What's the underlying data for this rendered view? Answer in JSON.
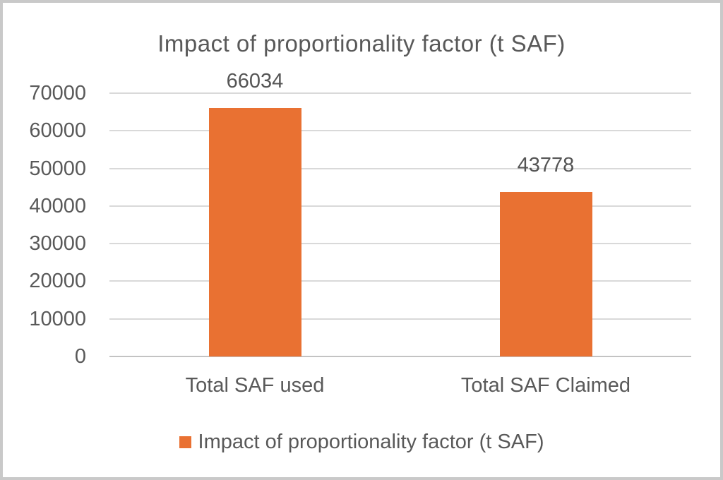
{
  "chart_data": {
    "type": "bar",
    "title": "Impact of proportionality factor (t SAF)",
    "categories": [
      "Total SAF used",
      "Total SAF Claimed"
    ],
    "series": [
      {
        "name": "Impact of proportionality factor (t SAF)",
        "values": [
          66034,
          43778
        ],
        "color": "#E97132"
      }
    ],
    "data_labels": [
      "66034",
      "43778"
    ],
    "ytick_labels": [
      "0",
      "10000",
      "20000",
      "30000",
      "40000",
      "50000",
      "60000",
      "70000"
    ],
    "yticks": [
      0,
      10000,
      20000,
      30000,
      40000,
      50000,
      60000,
      70000
    ],
    "ylim": [
      0,
      70000
    ],
    "xlabel": "",
    "ylabel": "",
    "grid": true,
    "legend_position": "bottom",
    "colors": {
      "bar": "#E97132",
      "text": "#595959",
      "gridline": "#D9D9D9",
      "axis_line": "#C3C3C3",
      "background": "#FFFFFF",
      "border": "#C9C9C9"
    }
  },
  "legend": {
    "label": "Impact of proportionality factor (t SAF)"
  }
}
